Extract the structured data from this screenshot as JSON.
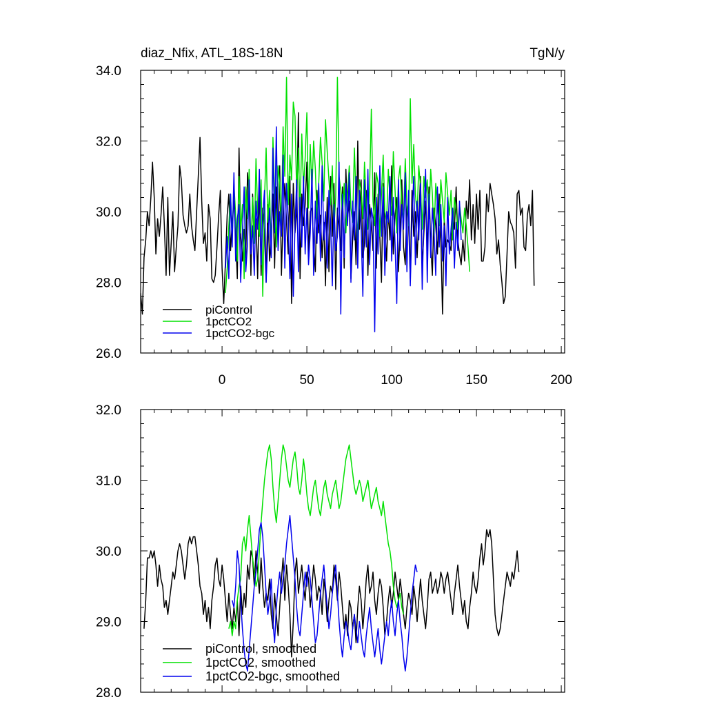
{
  "colors": {
    "picontrol": "#000000",
    "pct": "#00e000",
    "bgc": "#0000ee",
    "frame": "#000000"
  },
  "chart_data": [
    {
      "type": "line",
      "title": "diaz_Nfix, ATL_18S-18N",
      "units": "TgN/y",
      "xlim": [
        -48,
        202
      ],
      "ylim": [
        26,
        34
      ],
      "x_ticks": [
        0,
        50,
        100,
        150,
        200
      ],
      "x_tick_labels": [
        "0",
        "50",
        "100",
        "150",
        "200"
      ],
      "y_ticks": [
        26,
        28,
        30,
        32,
        34
      ],
      "y_tick_labels": [
        "26.0",
        "28.0",
        "30.0",
        "32.0",
        "34.0"
      ],
      "legend_position": "bottom-left",
      "series": [
        {
          "name": "piControl",
          "color_key": "picontrol",
          "x_start": -48,
          "values": [
            27.7,
            27.1,
            28.7,
            29.2,
            30.0,
            29.6,
            30.4,
            31.4,
            30.4,
            28.8,
            29.8,
            29.3,
            29.9,
            30.7,
            29.6,
            28.2,
            30.4,
            28.2,
            29.1,
            30.0,
            28.3,
            29.0,
            29.6,
            31.3,
            30.9,
            29.9,
            29.6,
            29.4,
            29.6,
            30.5,
            29.6,
            29.2,
            28.9,
            30.0,
            31.0,
            32.1,
            30.3,
            29.1,
            29.4,
            28.6,
            30.2,
            29.8,
            28.1,
            28.0,
            28.2,
            29.0,
            29.9,
            30.6,
            28.4,
            27.4,
            28.6,
            29.9,
            30.5,
            28.9,
            29.7,
            30.3,
            29.3,
            28.1,
            31.8,
            29.3,
            28.6,
            29.5,
            28.7,
            31.1,
            30.4,
            28.2,
            30.5,
            29.2,
            29.8,
            28.1,
            30.7,
            28.2,
            30.1,
            29.4,
            28.0,
            30.2,
            28.6,
            29.3,
            30.5,
            28.4,
            30.7,
            29.0,
            31.3,
            28.2,
            29.9,
            30.8,
            29.7,
            28.8,
            31.0,
            27.4,
            30.8,
            29.4,
            30.0,
            32.8,
            28.1,
            30.5,
            29.6,
            30.2,
            31.4,
            28.8,
            30.0,
            30.1,
            29.1,
            28.3,
            30.6,
            29.4,
            29.9,
            28.7,
            29.7,
            27.9,
            30.4,
            28.3,
            31.0,
            29.3,
            30.8,
            27.8,
            30.1,
            29.6,
            28.9,
            30.7,
            28.4,
            31.2,
            29.8,
            30.3,
            28.1,
            29.2,
            30.0,
            28.5,
            32.0,
            29.5,
            30.9,
            28.7,
            29.1,
            30.6,
            28.2,
            30.2,
            29.7,
            28.9,
            31.1,
            28.4,
            30.5,
            29.3,
            28.0,
            30.8,
            29.6,
            28.6,
            30.0,
            29.2,
            31.3,
            28.8,
            29.9,
            30.4,
            28.3,
            29.5,
            30.9,
            29.0,
            28.5,
            30.2,
            29.7,
            28.1,
            30.6,
            29.3,
            30.0,
            28.7,
            29.8,
            31.0,
            28.4,
            29.4,
            30.3,
            28.9,
            30.7,
            29.1,
            28.2,
            30.1,
            29.6,
            28.8,
            30.5,
            29.2,
            27.1,
            29.8,
            29.0,
            29.2,
            29.1,
            28.9,
            29.9,
            29.5,
            30.7,
            29.2,
            28.8,
            28.5,
            29.2,
            28.6,
            30.3,
            29.8,
            30.9,
            29.2,
            30.2,
            29.1,
            30.5,
            29.5,
            30.6,
            28.6,
            28.6,
            29.0,
            30.5,
            30.0,
            30.8,
            30.5,
            30.2,
            29.8,
            28.8,
            29.2,
            28.5,
            28.0,
            27.4,
            27.6,
            28.8,
            30.0,
            29.7,
            29.6,
            29.4,
            28.4,
            30.5,
            30.6,
            29.9,
            30.1,
            29.0,
            28.9,
            29.9,
            30.2,
            29.6,
            30.6,
            27.9
          ]
        },
        {
          "name": "1pctCO2",
          "color_key": "pct",
          "x_start": 2,
          "values": [
            27.7,
            28.4,
            29.6,
            30.5,
            29.2,
            30.8,
            29.9,
            28.6,
            31.0,
            29.4,
            30.2,
            28.1,
            30.7,
            29.8,
            31.2,
            28.9,
            30.4,
            29.1,
            31.5,
            30.0,
            29.3,
            30.9,
            27.6,
            30.3,
            31.8,
            29.7,
            30.6,
            28.8,
            32.1,
            30.4,
            29.0,
            31.3,
            30.8,
            29.6,
            32.4,
            31.0,
            33.8,
            30.2,
            31.6,
            30.9,
            33.1,
            32.7,
            30.5,
            31.8,
            29.9,
            32.2,
            30.7,
            31.5,
            32.8,
            30.1,
            31.9,
            30.6,
            32.0,
            31.2,
            29.8,
            30.8,
            32.1,
            31.4,
            30.3,
            32.6,
            31.7,
            30.9,
            30.2,
            31.3,
            29.5,
            30.4,
            33.8,
            31.0,
            30.6,
            29.9,
            30.8,
            29.4,
            30.5,
            31.3,
            30.1,
            29.7,
            31.8,
            30.4,
            29.2,
            30.9,
            30.6,
            29.8,
            31.4,
            30.2,
            29.5,
            30.7,
            32.9,
            30.3,
            29.6,
            31.1,
            30.8,
            29.3,
            30.5,
            31.6,
            30.0,
            29.7,
            31.2,
            30.4,
            29.9,
            31.7,
            30.6,
            29.4,
            30.9,
            31.3,
            30.1,
            29.8,
            31.5,
            30.2,
            29.6,
            33.2,
            30.8,
            31.9,
            30.5,
            29.9,
            31.3,
            30.7,
            29.5,
            31.0,
            30.4,
            30.9,
            29.8,
            31.2,
            30.5,
            29.3,
            30.8,
            30.2,
            29.6,
            30.9,
            30.3,
            29.7,
            31.1,
            30.5,
            29.9,
            30.6,
            29.2,
            30.4,
            30.0,
            29.5,
            30.2,
            29.8,
            29.4,
            30.1,
            29.6,
            29.0,
            28.3
          ]
        },
        {
          "name": "1pctCO2-bgc",
          "color_key": "bgc",
          "x_start": 2,
          "values": [
            28.4,
            29.3,
            28.1,
            30.5,
            29.0,
            31.1,
            28.6,
            29.8,
            30.2,
            28.0,
            29.4,
            30.7,
            28.3,
            29.1,
            30.9,
            28.8,
            29.6,
            28.2,
            30.3,
            29.5,
            31.2,
            28.5,
            29.9,
            30.6,
            28.0,
            29.2,
            30.1,
            28.7,
            31.8,
            29.4,
            32.4,
            28.9,
            30.0,
            29.3,
            31.6,
            28.4,
            30.8,
            29.7,
            28.1,
            30.5,
            27.6,
            29.6,
            30.9,
            28.3,
            30.4,
            29.0,
            31.0,
            28.8,
            30.1,
            28.5,
            29.4,
            31.2,
            28.2,
            30.3,
            29.1,
            30.8,
            28.6,
            31.3,
            29.2,
            30.0,
            28.4,
            30.6,
            29.7,
            27.9,
            30.2,
            28.9,
            29.3,
            31.4,
            27.1,
            30.5,
            28.7,
            30.8,
            29.6,
            31.1,
            28.0,
            30.3,
            29.2,
            31.0,
            28.4,
            30.6,
            29.5,
            27.6,
            30.9,
            29.0,
            31.2,
            28.5,
            30.1,
            29.8,
            26.6,
            30.4,
            28.8,
            31.3,
            29.3,
            30.7,
            28.2,
            30.0,
            29.7,
            31.0,
            28.6,
            30.4,
            29.1,
            27.4,
            30.9,
            28.9,
            30.2,
            29.5,
            31.1,
            28.3,
            30.6,
            27.9,
            29.8,
            31.0,
            28.5,
            30.3,
            29.2,
            30.8,
            27.8,
            29.9,
            31.2,
            28.0,
            30.5,
            28.7,
            30.1,
            29.4,
            28.2,
            30.7,
            29.0,
            30.2,
            28.6,
            29.6,
            27.9,
            30.4,
            28.8,
            29.5,
            30.1,
            28.4,
            29.7,
            28.9,
            30.3,
            29.2
          ]
        }
      ]
    },
    {
      "type": "line",
      "xlim": [
        -48,
        202
      ],
      "ylim": [
        28,
        32
      ],
      "x_ticks": [
        0,
        50,
        100,
        150,
        200
      ],
      "y_ticks": [
        28,
        29,
        30,
        31,
        32
      ],
      "y_tick_labels": [
        "28.0",
        "29.0",
        "30.0",
        "31.0",
        "32.0"
      ],
      "legend_position": "bottom-left",
      "series": [
        {
          "name": "piControl, smoothed",
          "color_key": "picontrol",
          "x_start": -46,
          "values": [
            28.9,
            29.3,
            29.9,
            29.9,
            30.0,
            29.9,
            30.0,
            29.8,
            29.5,
            29.8,
            29.6,
            29.5,
            29.2,
            29.3,
            29.1,
            29.3,
            29.5,
            29.7,
            29.6,
            29.8,
            30.0,
            30.1,
            30.0,
            29.8,
            29.6,
            29.8,
            30.1,
            30.2,
            30.1,
            30.2,
            30.2,
            30.0,
            29.8,
            29.5,
            29.4,
            29.1,
            29.3,
            29.0,
            29.2,
            28.9,
            29.3,
            29.5,
            29.8,
            29.9,
            29.6,
            29.5,
            29.8,
            29.6,
            29.3,
            29.0,
            29.4,
            29.1,
            28.9,
            29.2,
            29.0,
            29.3,
            28.8,
            29.5,
            29.1,
            29.4,
            29.2,
            29.8,
            29.6,
            30.0,
            29.9,
            29.5,
            30.0,
            29.7,
            29.4,
            29.9,
            29.5,
            29.2,
            29.4,
            29.3,
            29.6,
            29.1,
            28.9,
            29.4,
            29.1,
            28.8,
            29.2,
            29.6,
            29.9,
            29.3,
            29.8,
            29.5,
            29.1,
            28.5,
            29.0,
            29.7,
            29.9,
            29.4,
            29.6,
            29.8,
            29.5,
            29.3,
            29.7,
            29.6,
            29.2,
            29.5,
            29.8,
            29.6,
            29.3,
            29.5,
            29.4,
            29.1,
            29.6,
            29.4,
            29.0,
            29.3,
            29.5,
            29.4,
            29.8,
            29.6,
            29.3,
            29.7,
            29.5,
            29.2,
            28.9,
            29.1,
            28.8,
            29.3,
            29.2,
            28.9,
            29.1,
            28.7,
            29.2,
            29.5,
            29.3,
            28.9,
            29.2,
            29.6,
            29.8,
            29.4,
            29.5,
            29.7,
            29.3,
            29.1,
            29.4,
            29.6,
            29.5,
            29.2,
            28.8,
            29.0,
            29.3,
            29.5,
            29.2,
            29.4,
            29.7,
            29.5,
            29.3,
            29.6,
            29.4,
            29.1,
            28.9,
            29.2,
            29.4,
            29.3,
            29.1,
            29.5,
            29.3,
            29.0,
            29.3,
            29.6,
            29.3,
            29.1,
            28.9,
            29.2,
            29.6,
            29.7,
            29.4,
            29.5,
            29.6,
            29.4,
            29.5,
            29.7,
            29.6,
            29.4,
            29.6,
            29.7,
            29.5,
            29.3,
            29.1,
            29.4,
            29.6,
            29.8,
            29.5,
            29.3,
            29.1,
            29.3,
            29.0,
            28.9,
            29.2,
            29.4,
            29.7,
            29.5,
            29.4,
            29.6,
            29.9,
            30.1,
            29.8,
            30.0,
            30.3,
            30.2,
            30.3,
            30.1,
            29.6,
            29.1,
            28.9,
            28.8,
            28.9,
            29.1,
            29.3,
            29.5,
            29.7,
            29.6,
            29.5,
            29.7,
            29.6,
            29.8,
            30.0,
            29.7
          ]
        },
        {
          "name": "1pctCO2, smoothed",
          "color_key": "pct",
          "x_start": 4,
          "values": [
            28.9,
            29.0,
            28.8,
            29.0,
            28.9,
            29.3,
            29.5,
            29.6,
            30.1,
            30.2,
            30.0,
            30.3,
            30.5,
            30.2,
            29.9,
            29.7,
            29.5,
            29.6,
            30.0,
            30.4,
            30.7,
            31.0,
            31.2,
            31.4,
            31.5,
            31.3,
            30.9,
            30.6,
            30.4,
            30.7,
            31.0,
            31.3,
            31.5,
            31.4,
            31.2,
            31.0,
            30.9,
            31.1,
            31.3,
            31.4,
            31.2,
            30.9,
            30.8,
            31.0,
            31.3,
            31.1,
            30.8,
            30.6,
            30.5,
            30.7,
            30.9,
            31.0,
            30.8,
            30.6,
            30.5,
            30.7,
            30.9,
            31.0,
            30.8,
            30.7,
            30.6,
            30.8,
            30.9,
            31.0,
            30.8,
            30.6,
            30.7,
            30.9,
            31.1,
            31.3,
            31.4,
            31.5,
            31.3,
            31.1,
            30.9,
            30.8,
            30.9,
            31.0,
            30.9,
            30.7,
            30.8,
            30.9,
            31.0,
            30.8,
            30.6,
            30.7,
            30.8,
            30.9,
            30.7,
            30.6,
            30.5,
            30.7,
            30.5,
            30.3,
            30.1,
            30.0,
            29.8,
            29.5,
            29.3,
            29.2,
            29.3,
            29.4,
            29.2,
            29.1
          ]
        },
        {
          "name": "1pctCO2-bgc, smoothed",
          "color_key": "bgc",
          "x_start": 6,
          "values": [
            29.3,
            29.2,
            29.5,
            30.0,
            29.8,
            29.3,
            28.9,
            28.6,
            28.4,
            28.3,
            28.6,
            28.9,
            29.2,
            29.5,
            29.7,
            30.0,
            30.3,
            30.4,
            30.2,
            29.8,
            29.4,
            29.1,
            29.3,
            29.6,
            29.0,
            28.7,
            29.2,
            29.5,
            29.7,
            29.4,
            29.6,
            29.8,
            30.1,
            30.3,
            30.5,
            30.2,
            29.9,
            29.6,
            29.2,
            28.9,
            28.8,
            29.1,
            29.4,
            29.7,
            29.5,
            29.8,
            29.6,
            29.3,
            29.0,
            28.7,
            28.8,
            29.1,
            29.4,
            29.6,
            29.8,
            29.5,
            29.2,
            28.9,
            29.1,
            29.4,
            29.6,
            29.8,
            29.4,
            29.0,
            28.7,
            28.5,
            28.8,
            29.0,
            28.9,
            28.7,
            28.6,
            28.9,
            29.1,
            28.9,
            28.7,
            29.0,
            28.8,
            28.6,
            28.5,
            28.8,
            29.0,
            29.2,
            28.9,
            28.7,
            28.5,
            28.7,
            28.9,
            28.6,
            28.4,
            28.6,
            28.8,
            29.0,
            28.8,
            29.1,
            29.3,
            29.0,
            28.8,
            29.1,
            29.3,
            29.0,
            28.8,
            28.5,
            28.3,
            28.5,
            28.8,
            29.1,
            29.4,
            29.6,
            29.8,
            29.7
          ]
        }
      ]
    }
  ]
}
